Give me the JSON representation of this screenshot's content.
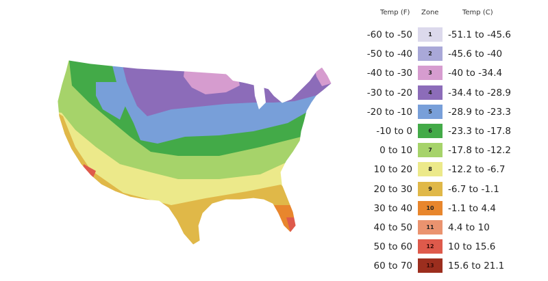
{
  "legend": {
    "header_f": "Temp (F)",
    "header_zone": "Zone",
    "header_c": "Temp (C)",
    "rows": [
      {
        "f": "-60 to -50",
        "zone": "1",
        "c": "-51.1 to -45.6",
        "color": "#dcd9ec"
      },
      {
        "f": "-50 to -40",
        "zone": "2",
        "c": "-45.6 to -40",
        "color": "#a9a8d8"
      },
      {
        "f": "-40 to -30",
        "zone": "3",
        "c": "-40 to -34.4",
        "color": "#d69ccf"
      },
      {
        "f": "-30 to -20",
        "zone": "4",
        "c": "-34.4 to -28.9",
        "color": "#8c6cb9"
      },
      {
        "f": "-20 to -10",
        "zone": "5",
        "c": "-28.9 to -23.3",
        "color": "#789fd9"
      },
      {
        "f": "-10 to 0",
        "zone": "6",
        "c": "-23.3 to -17.8",
        "color": "#43aa48"
      },
      {
        "f": "0 to 10",
        "zone": "7",
        "c": "-17.8 to -12.2",
        "color": "#a6d36a"
      },
      {
        "f": "10 to 20",
        "zone": "8",
        "c": "-12.2 to -6.7",
        "color": "#ece98a"
      },
      {
        "f": "20 to 30",
        "zone": "9",
        "c": "-6.7 to -1.1",
        "color": "#e0b848"
      },
      {
        "f": "30 to 40",
        "zone": "10",
        "c": "-1.1 to 4.4",
        "color": "#e8862d"
      },
      {
        "f": "40 to 50",
        "zone": "11",
        "c": "4.4 to 10",
        "color": "#ea936f"
      },
      {
        "f": "50 to 60",
        "zone": "12",
        "c": "10 to 15.6",
        "color": "#de5a4b"
      },
      {
        "f": "60 to 70",
        "zone": "13",
        "c": "15.6 to 21.1",
        "color": "#9c2e1e"
      }
    ]
  }
}
